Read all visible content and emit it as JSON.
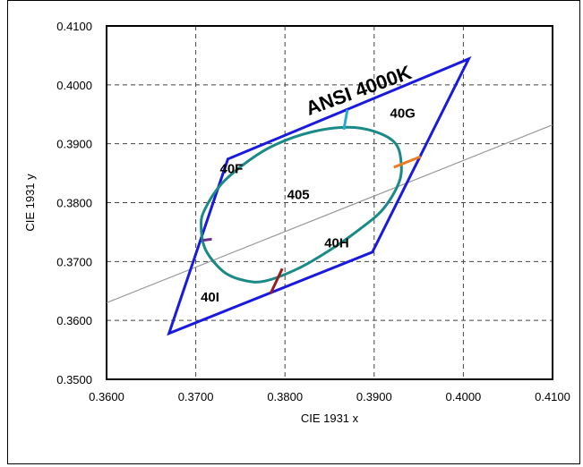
{
  "chart_data": {
    "type": "scatter",
    "xlabel": "CIE 1931 x",
    "ylabel": "CIE 1931 y",
    "xlim": [
      0.36,
      0.41
    ],
    "ylim": [
      0.35,
      0.41
    ],
    "x_ticks": [
      "0.3600",
      "0.3700",
      "0.3800",
      "0.3900",
      "0.4000",
      "0.4100"
    ],
    "y_ticks": [
      "0.3500",
      "0.3600",
      "0.3700",
      "0.3800",
      "0.3900",
      "0.4000",
      "0.4100"
    ],
    "grid": true,
    "colors": {
      "quadrangle": "#1a1adf",
      "ellipse": "#1a8a86",
      "blackbody": "#999999",
      "seg_top": "#29a9d6",
      "seg_right": "#f07a22",
      "seg_bottom": "#9a1c1c",
      "seg_left": "#6a2a8a"
    },
    "quadrangle": {
      "name": "ANSI 4000K",
      "points": [
        [
          0.3736,
          0.3874
        ],
        [
          0.4006,
          0.4044
        ],
        [
          0.3898,
          0.3716
        ],
        [
          0.367,
          0.3578
        ]
      ]
    },
    "ellipse": {
      "center": [
        0.3818,
        0.3797
      ],
      "points": [
        [
          0.3778,
          0.3667
        ],
        [
          0.3816,
          0.3689
        ],
        [
          0.3851,
          0.372
        ],
        [
          0.3883,
          0.3754
        ],
        [
          0.391,
          0.3789
        ],
        [
          0.3928,
          0.3835
        ],
        [
          0.393,
          0.3872
        ],
        [
          0.3923,
          0.3902
        ],
        [
          0.39,
          0.3921
        ],
        [
          0.387,
          0.3928
        ],
        [
          0.383,
          0.392
        ],
        [
          0.379,
          0.3899
        ],
        [
          0.376,
          0.3872
        ],
        [
          0.3729,
          0.3832
        ],
        [
          0.371,
          0.3788
        ],
        [
          0.3706,
          0.376
        ],
        [
          0.3711,
          0.372
        ],
        [
          0.3731,
          0.3683
        ],
        [
          0.3754,
          0.3668
        ]
      ]
    },
    "blackbody_line": [
      [
        0.36,
        0.363
      ],
      [
        0.41,
        0.3932
      ]
    ],
    "segments": [
      {
        "color_key": "seg_top",
        "points": [
          [
            0.3866,
            0.3924
          ],
          [
            0.387,
            0.3958
          ]
        ]
      },
      {
        "color_key": "seg_right",
        "points": [
          [
            0.3922,
            0.386
          ],
          [
            0.3952,
            0.3878
          ]
        ]
      },
      {
        "color_key": "seg_bottom",
        "points": [
          [
            0.3797,
            0.3688
          ],
          [
            0.3784,
            0.3646
          ]
        ]
      },
      {
        "color_key": "seg_left",
        "points": [
          [
            0.3708,
            0.3736
          ],
          [
            0.3718,
            0.3738
          ]
        ]
      }
    ],
    "labels": [
      {
        "text": "ANSI 4000K",
        "x": 0.3885,
        "y": 0.398,
        "rotate": -20,
        "cls": "big-label"
      },
      {
        "text": "40G",
        "x": 0.3932,
        "y": 0.3944,
        "cls": "region-label"
      },
      {
        "text": "40F",
        "x": 0.374,
        "y": 0.385,
        "cls": "region-label"
      },
      {
        "text": "405",
        "x": 0.3815,
        "y": 0.3806,
        "cls": "region-label"
      },
      {
        "text": "40H",
        "x": 0.3858,
        "y": 0.3724,
        "cls": "region-label"
      },
      {
        "text": "40I",
        "x": 0.3716,
        "y": 0.3632,
        "cls": "region-label"
      }
    ]
  }
}
